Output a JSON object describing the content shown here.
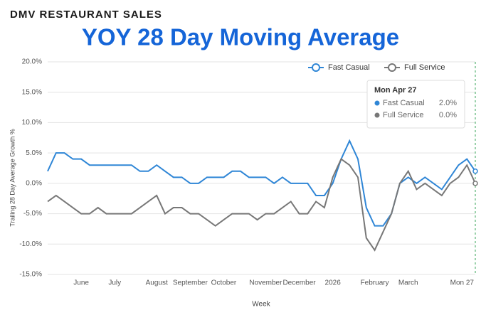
{
  "chart_data": {
    "type": "line",
    "supertitle": "DMV RESTAURANT SALES",
    "title": "YOY 28 Day Moving Average",
    "y_label": "Trailing 28 Day Average Growth %",
    "x_label": "Week",
    "categories": [
      null,
      null,
      null,
      null,
      "June",
      null,
      null,
      null,
      "July",
      null,
      null,
      null,
      null,
      "August",
      null,
      null,
      null,
      "September",
      null,
      null,
      null,
      "October",
      null,
      null,
      null,
      null,
      "November",
      null,
      null,
      null,
      "December",
      null,
      null,
      null,
      "2026",
      null,
      null,
      null,
      null,
      "February",
      null,
      null,
      null,
      "March",
      null,
      null,
      null,
      null,
      null,
      null,
      null,
      "Mon 27"
    ],
    "series": [
      {
        "name": "Fast Casual",
        "color": "#2f86d6",
        "values": [
          2,
          5,
          5,
          4,
          4,
          3,
          3,
          3,
          3,
          3,
          3,
          2,
          2,
          3,
          2,
          1,
          1,
          0,
          0,
          1,
          1,
          1,
          2,
          2,
          1,
          1,
          1,
          0,
          1,
          0,
          0,
          0,
          -2,
          -2,
          0,
          4,
          7,
          4,
          -4,
          -7,
          -7,
          -5,
          0,
          1,
          0,
          1,
          0,
          -1,
          1,
          3,
          4,
          2
        ]
      },
      {
        "name": "Full Service",
        "color": "#777777",
        "values": [
          -3,
          -2,
          -3,
          -4,
          -5,
          -5,
          -4,
          -5,
          -5,
          -5,
          -5,
          -4,
          -3,
          -2,
          -5,
          -4,
          -4,
          -5,
          -5,
          -6,
          -7,
          -6,
          -5,
          -5,
          -5,
          -6,
          -5,
          -5,
          -4,
          -3,
          -5,
          -5,
          -3,
          -4,
          1,
          4,
          3,
          1,
          -9,
          -11,
          -8,
          -5,
          0,
          2,
          -1,
          0,
          -1,
          -2,
          0,
          1,
          3,
          0
        ]
      }
    ],
    "ylim": [
      -15,
      20
    ],
    "yticks": [
      {
        "value": -15,
        "label": "-15.0%"
      },
      {
        "value": -10,
        "label": "-10.0%"
      },
      {
        "value": -5,
        "label": "-5.0%"
      },
      {
        "value": 0,
        "label": "0.0%"
      },
      {
        "value": 5,
        "label": "5.0%"
      },
      {
        "value": 10,
        "label": "10.0%"
      },
      {
        "value": 15,
        "label": "15.0%"
      },
      {
        "value": 20,
        "label": "20.0%"
      }
    ],
    "grid": true,
    "legend": "top-right",
    "tooltip": {
      "title": "Mon Apr 27",
      "value_labels": [
        "2.0%",
        "0.0%"
      ]
    }
  }
}
